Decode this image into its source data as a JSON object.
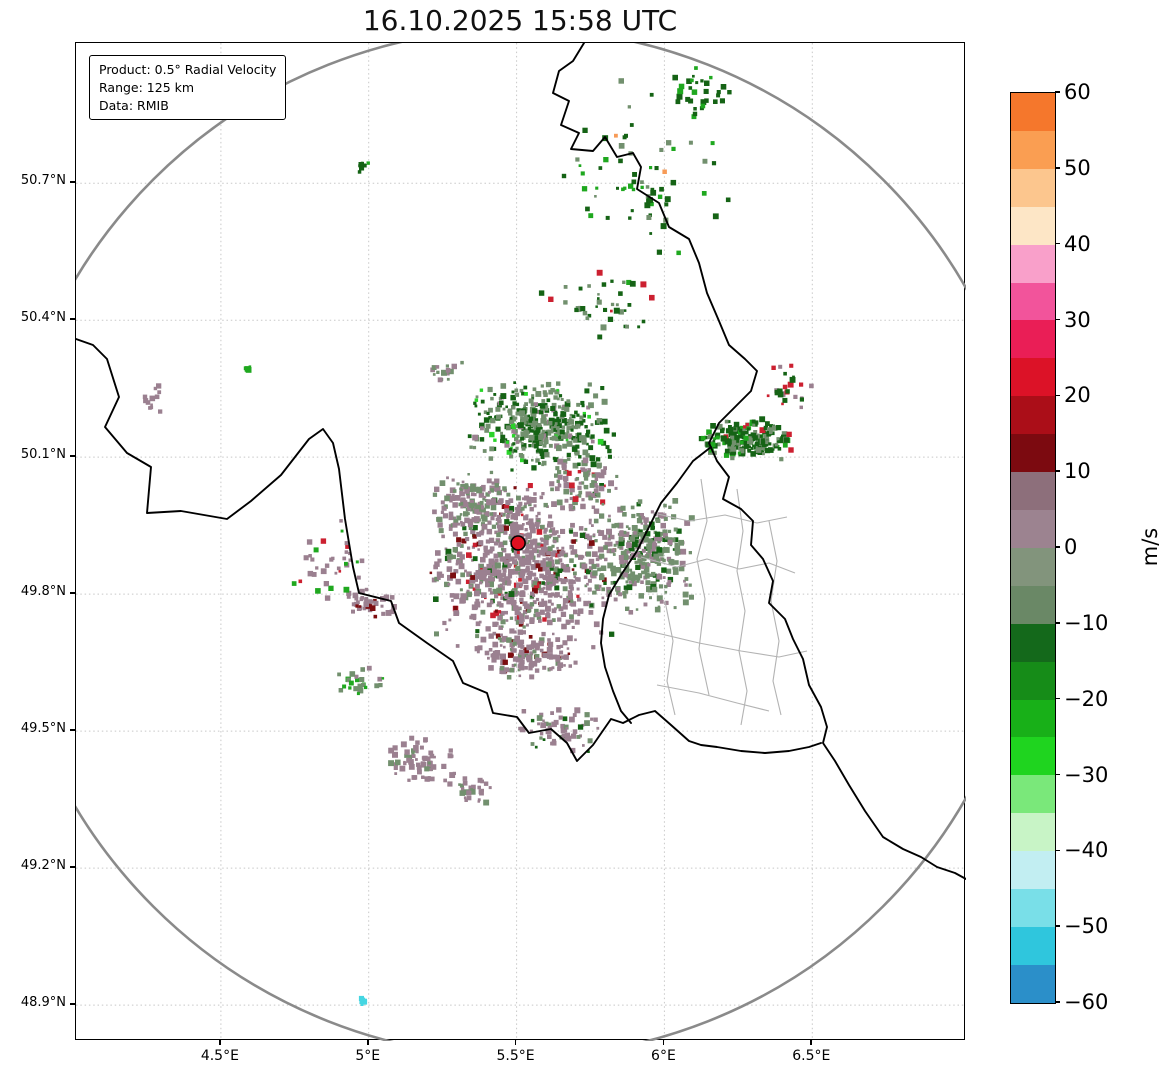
{
  "title": "16.10.2025 15:58 UTC",
  "info_box": {
    "lines": [
      "Product: 0.5° Radial Velocity",
      "Range: 125 km",
      "Data: RMIB"
    ]
  },
  "axes": {
    "y_ticks": [
      {
        "lat": 50.7,
        "label": "50.7°N"
      },
      {
        "lat": 50.4,
        "label": "50.4°N"
      },
      {
        "lat": 50.1,
        "label": "50.1°N"
      },
      {
        "lat": 49.8,
        "label": "49.8°N"
      },
      {
        "lat": 49.5,
        "label": "49.5°N"
      },
      {
        "lat": 49.2,
        "label": "49.2°N"
      },
      {
        "lat": 48.9,
        "label": "48.9°N"
      }
    ],
    "x_ticks": [
      {
        "lon": 4.5,
        "label": "4.5°E"
      },
      {
        "lon": 5.0,
        "label": "5°E"
      },
      {
        "lon": 5.5,
        "label": "5.5°E"
      },
      {
        "lon": 6.0,
        "label": "6°E"
      },
      {
        "lon": 6.5,
        "label": "6.5°E"
      }
    ]
  },
  "colorbar": {
    "label": "m/s",
    "min": -60,
    "max": 60,
    "ticks": [
      {
        "v": 60,
        "label": "60"
      },
      {
        "v": 50,
        "label": "50"
      },
      {
        "v": 40,
        "label": "40"
      },
      {
        "v": 30,
        "label": "30"
      },
      {
        "v": 20,
        "label": "20"
      },
      {
        "v": 10,
        "label": "10"
      },
      {
        "v": 0,
        "label": "0"
      },
      {
        "v": -10,
        "label": "−10"
      },
      {
        "v": -20,
        "label": "−20"
      },
      {
        "v": -30,
        "label": "−30"
      },
      {
        "v": -40,
        "label": "−40"
      },
      {
        "v": -50,
        "label": "−50"
      },
      {
        "v": -60,
        "label": "−60"
      }
    ],
    "segments": [
      {
        "hi": 60,
        "lo": 55,
        "color": "#f5772c"
      },
      {
        "hi": 55,
        "lo": 50,
        "color": "#fa9e52"
      },
      {
        "hi": 50,
        "lo": 45,
        "color": "#fcc68e"
      },
      {
        "hi": 45,
        "lo": 40,
        "color": "#fde6c6"
      },
      {
        "hi": 40,
        "lo": 35,
        "color": "#f9a0ca"
      },
      {
        "hi": 35,
        "lo": 30,
        "color": "#f2549b"
      },
      {
        "hi": 30,
        "lo": 25,
        "color": "#ea1e56"
      },
      {
        "hi": 25,
        "lo": 20,
        "color": "#dc1227"
      },
      {
        "hi": 20,
        "lo": 15,
        "color": "#ab0e18"
      },
      {
        "hi": 15,
        "lo": 10,
        "color": "#7c0a10"
      },
      {
        "hi": 10,
        "lo": 5,
        "color": "#8d6f7b"
      },
      {
        "hi": 5,
        "lo": 0,
        "color": "#9c8390"
      },
      {
        "hi": 0,
        "lo": -5,
        "color": "#82947c"
      },
      {
        "hi": -5,
        "lo": -10,
        "color": "#6a8866"
      },
      {
        "hi": -10,
        "lo": -15,
        "color": "#14691b"
      },
      {
        "hi": -15,
        "lo": -20,
        "color": "#168c18"
      },
      {
        "hi": -20,
        "lo": -25,
        "color": "#18b018"
      },
      {
        "hi": -25,
        "lo": -30,
        "color": "#1fd41f"
      },
      {
        "hi": -30,
        "lo": -35,
        "color": "#7ae87a"
      },
      {
        "hi": -35,
        "lo": -40,
        "color": "#c8f4c6"
      },
      {
        "hi": -40,
        "lo": -45,
        "color": "#c2eef2"
      },
      {
        "hi": -45,
        "lo": -50,
        "color": "#79dfe8"
      },
      {
        "hi": -50,
        "lo": -55,
        "color": "#2fc6dd"
      },
      {
        "hi": -55,
        "lo": -60,
        "color": "#2b8fc9"
      }
    ]
  },
  "map_geometry": {
    "border_color": "#000000",
    "inner_border_color": "#b3b3b3",
    "ring_color": "#8a8a8a",
    "grid_color": "#c8c8c8",
    "country_border_paths": [
      "M583,42 L572,60 558,70 552,92 568,100 560,124 578,132 570,148 592,150 604,136 616,156 632,152 640,166 636,188 658,202 668,226 688,238 698,262 706,292 718,320 728,344 744,358 756,370 750,390 734,406 718,422 708,442 716,460 728,476 722,498 740,508 752,520 750,544 762,558 772,580 768,602 784,618 792,638 802,658 808,684 820,706 826,726 822,742 834,760 848,784 864,810 882,836 902,848 920,856 936,866 954,872 965,878",
      "M75,338 L92,344 106,358 118,396 104,426 126,452 150,466 146,512 180,510 226,518 250,500 280,474 308,438 322,428 332,442 338,468 344,518 352,566 358,592 390,600 398,622 426,642 452,660 462,682 486,692 492,712 516,716 528,732 550,728 566,742 576,760 592,744 610,718 622,722 638,714 654,710 670,724 688,740 700,744 716,746 740,750 764,752 788,750 808,746 820,742",
      "M710,446 L692,460 676,482 660,502 648,526 636,550 620,574 608,594 602,618 600,642 604,666 612,690 620,710 630,722"
    ],
    "inner_border_paths": [
      "M700,478 L706,520 696,558 704,598 698,648 708,694",
      "M640,556 L676,566 706,558 738,568 768,562 794,572",
      "M618,622 L656,632 698,642 740,650 778,656 806,650",
      "M656,684 L698,692 736,702 768,710",
      "M652,512 L688,520 724,514 756,522 786,516",
      "M736,488 L742,530 736,570 744,610 738,650 746,690 740,724",
      "M664,600 L672,640 666,680 674,714",
      "M768,520 L776,560 770,600 778,640 772,680 780,714"
    ]
  },
  "chart_data": {
    "type": "heatmap",
    "subtype": "doppler-radar-radial-velocity-map",
    "title": "16.10.2025 15:58 UTC",
    "product": "0.5° Radial Velocity",
    "range_km": 125,
    "data_source": "RMIB",
    "units": "m/s",
    "colorbar_range": [
      -60,
      60
    ],
    "colorbar_tick_step": 10,
    "radar_site": {
      "lon": 5.505,
      "lat": 49.912
    },
    "lon_range": [
      4.01,
      7.02
    ],
    "lat_range": [
      48.82,
      51.01
    ],
    "grid": "dotted",
    "velocity_palette": {
      "mauve": {
        "color": "#9b8090",
        "velocity_ms": 3
      },
      "graygreen": {
        "color": "#72906e",
        "velocity_ms": -3
      },
      "darkgreen": {
        "color": "#156315",
        "velocity_ms": -13
      },
      "green": {
        "color": "#1fa81f",
        "velocity_ms": -20
      },
      "brightgreen": {
        "color": "#2ad42a",
        "velocity_ms": -28
      },
      "red": {
        "color": "#cc2030",
        "velocity_ms": 25
      },
      "darkred": {
        "color": "#7c0d10",
        "velocity_ms": 13
      },
      "orange": {
        "color": "#f79b57",
        "velocity_ms": 52
      },
      "cyan": {
        "color": "#45d6e2",
        "velocity_ms": -45
      }
    },
    "echo_clusters": [
      {
        "lon": 5.513,
        "lat": 49.86,
        "dlon": 0.32,
        "dlat": 0.19,
        "n": 850,
        "mix": {
          "mauve": 0.7,
          "graygreen": 0.18,
          "darkred": 0.05,
          "darkgreen": 0.04,
          "red": 0.03
        }
      },
      {
        "lon": 5.581,
        "lat": 50.166,
        "dlon": 0.25,
        "dlat": 0.105,
        "n": 420,
        "mix": {
          "graygreen": 0.5,
          "darkgreen": 0.38,
          "brightgreen": 0.05,
          "mauve": 0.07
        }
      },
      {
        "lon": 5.919,
        "lat": 49.882,
        "dlon": 0.186,
        "dlat": 0.131,
        "n": 330,
        "mix": {
          "graygreen": 0.58,
          "mauve": 0.3,
          "darkgreen": 0.12
        }
      },
      {
        "lon": 6.283,
        "lat": 50.14,
        "dlon": 0.162,
        "dlat": 0.048,
        "n": 220,
        "mix": {
          "darkgreen": 0.58,
          "graygreen": 0.25,
          "green": 0.12,
          "red": 0.05
        }
      },
      {
        "lon": 5.344,
        "lat": 50.002,
        "dlon": 0.135,
        "dlat": 0.066,
        "n": 130,
        "mix": {
          "mauve": 0.6,
          "graygreen": 0.4
        }
      },
      {
        "lon": 5.547,
        "lat": 49.663,
        "dlon": 0.203,
        "dlat": 0.055,
        "n": 140,
        "mix": {
          "mauve": 0.78,
          "graygreen": 0.15,
          "darkred": 0.07
        }
      },
      {
        "lon": 4.871,
        "lat": 49.871,
        "dlon": 0.152,
        "dlat": 0.099,
        "n": 40,
        "mix": {
          "mauve": 0.8,
          "red": 0.1,
          "green": 0.1
        }
      },
      {
        "lon": 5.175,
        "lat": 49.433,
        "dlon": 0.135,
        "dlat": 0.061,
        "n": 70,
        "mix": {
          "mauve": 0.85,
          "graygreen": 0.15
        }
      },
      {
        "lon": 5.648,
        "lat": 49.499,
        "dlon": 0.152,
        "dlat": 0.055,
        "n": 60,
        "mix": {
          "mauve": 0.7,
          "graygreen": 0.2,
          "darkgreen": 0.1
        }
      },
      {
        "lon": 5.919,
        "lat": 50.703,
        "dlon": 0.304,
        "dlat": 0.241,
        "n": 70,
        "mix": {
          "darkgreen": 0.5,
          "green": 0.28,
          "graygreen": 0.17,
          "orange": 0.05
        }
      },
      {
        "lon": 6.121,
        "lat": 50.9,
        "dlon": 0.101,
        "dlat": 0.066,
        "n": 30,
        "mix": {
          "darkgreen": 0.6,
          "green": 0.4
        }
      },
      {
        "lon": 4.27,
        "lat": 50.226,
        "dlon": 0.034,
        "dlat": 0.031,
        "n": 12,
        "mix": {
          "mauve": 1.0
        }
      },
      {
        "lon": 4.98,
        "lat": 48.91,
        "dlon": 0.027,
        "dlat": 0.009,
        "n": 8,
        "mix": {
          "cyan": 1.0
        }
      },
      {
        "lon": 6.425,
        "lat": 50.254,
        "dlon": 0.101,
        "dlat": 0.055,
        "n": 25,
        "mix": {
          "mauve": 0.4,
          "red": 0.25,
          "darkgreen": 0.35
        }
      },
      {
        "lon": 5.784,
        "lat": 50.44,
        "dlon": 0.203,
        "dlat": 0.088,
        "n": 40,
        "mix": {
          "darkgreen": 0.55,
          "graygreen": 0.3,
          "red": 0.15
        }
      },
      {
        "lon": 4.973,
        "lat": 49.608,
        "dlon": 0.084,
        "dlat": 0.033,
        "n": 25,
        "mix": {
          "graygreen": 0.5,
          "green": 0.3,
          "mauve": 0.2
        }
      },
      {
        "lon": 5.344,
        "lat": 49.367,
        "dlon": 0.084,
        "dlat": 0.033,
        "n": 30,
        "mix": {
          "mauve": 0.7,
          "graygreen": 0.3
        }
      },
      {
        "lon": 5.007,
        "lat": 49.772,
        "dlon": 0.084,
        "dlat": 0.026,
        "n": 40,
        "mix": {
          "darkred": 0.3,
          "mauve": 0.7
        }
      },
      {
        "lon": 5.716,
        "lat": 50.046,
        "dlon": 0.135,
        "dlat": 0.066,
        "n": 80,
        "mix": {
          "mauve": 0.45,
          "graygreen": 0.35,
          "red": 0.1,
          "darkgreen": 0.1
        }
      },
      {
        "lon": 5.26,
        "lat": 50.287,
        "dlon": 0.061,
        "dlat": 0.022,
        "n": 15,
        "mix": {
          "graygreen": 0.6,
          "mauve": 0.4
        }
      },
      {
        "lon": 4.98,
        "lat": 50.736,
        "dlon": 0.034,
        "dlat": 0.018,
        "n": 8,
        "mix": {
          "darkgreen": 0.7,
          "green": 0.3
        }
      },
      {
        "lon": 4.594,
        "lat": 50.291,
        "dlon": 0.017,
        "dlat": 0.011,
        "n": 4,
        "mix": {
          "green": 1.0
        }
      }
    ]
  }
}
